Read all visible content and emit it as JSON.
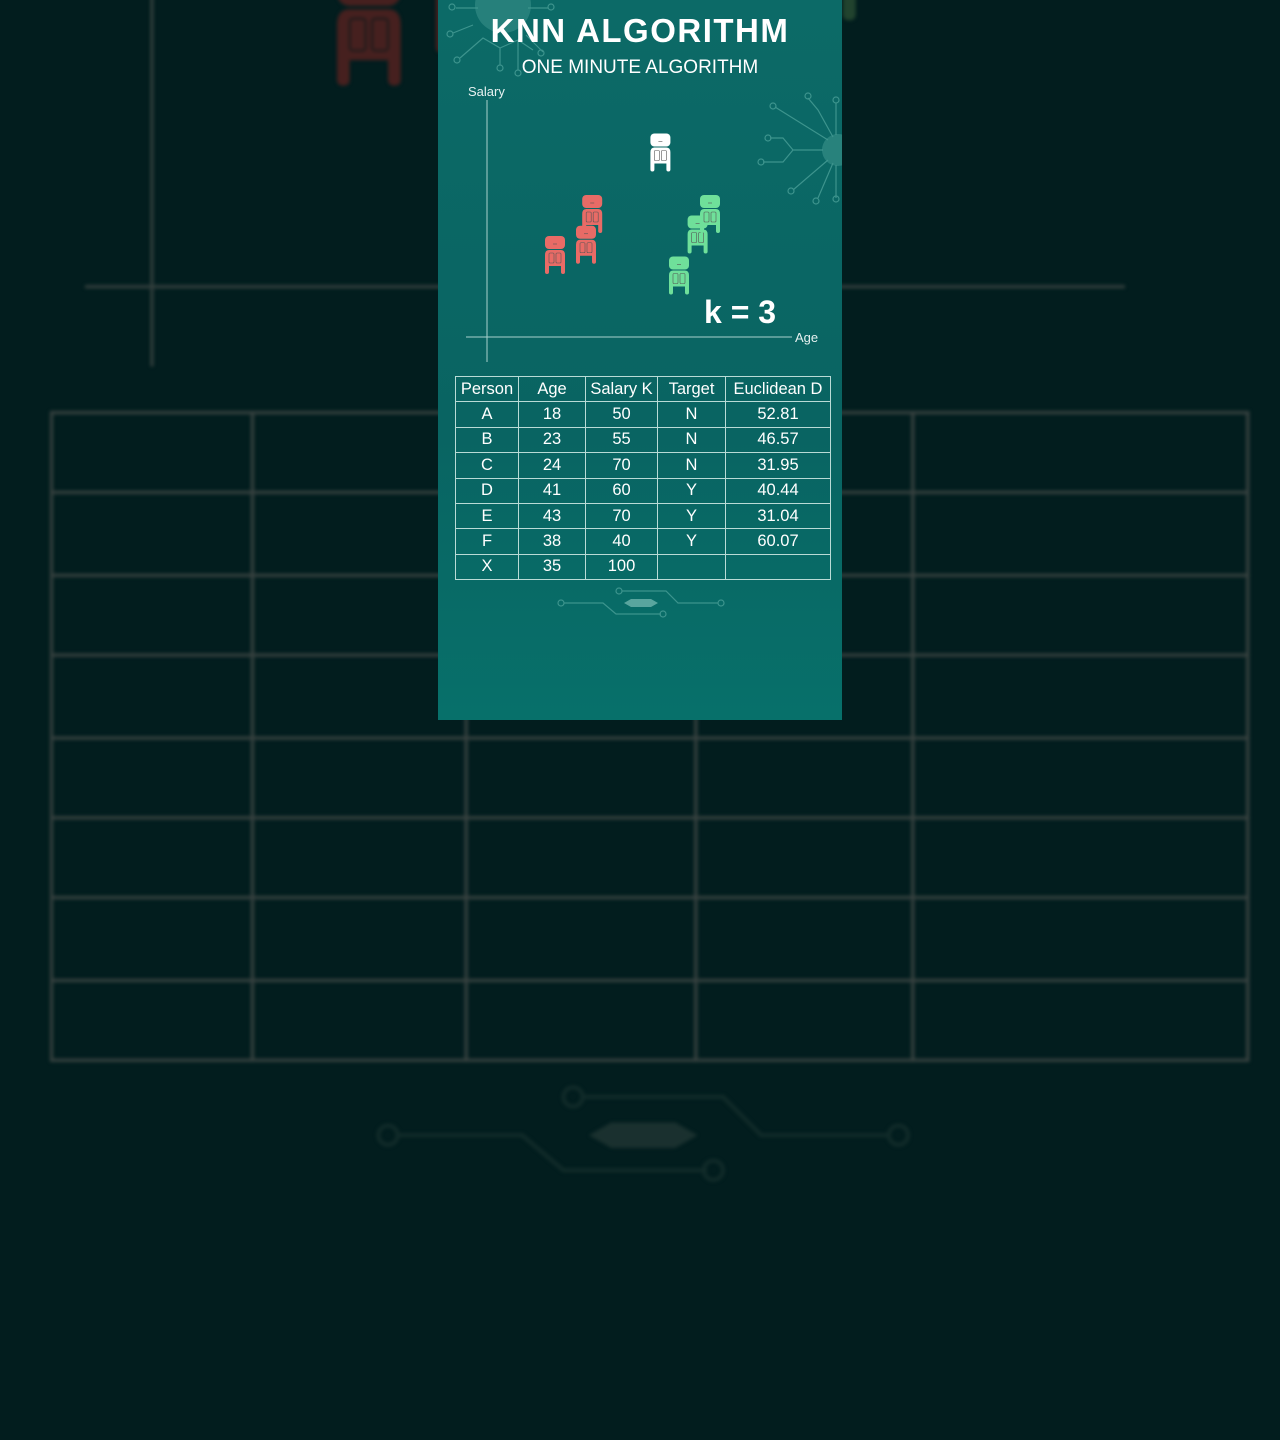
{
  "header": {
    "title": "KNN ALGORITHM",
    "subtitle": "ONE MINUTE ALGORITHM"
  },
  "plot": {
    "y_axis_label": "Salary",
    "x_axis_label": "Age",
    "k_label": "k = 3",
    "colors": {
      "N": "#e86b66",
      "Y": "#6fe09a",
      "query": "#ffffff"
    }
  },
  "table": {
    "headers": [
      "Person",
      "Age",
      "Salary K",
      "Target",
      "Euclidean D"
    ],
    "rows": [
      [
        "A",
        "18",
        "50",
        "N",
        "52.81"
      ],
      [
        "B",
        "23",
        "55",
        "N",
        "46.57"
      ],
      [
        "C",
        "24",
        "70",
        "N",
        "31.95"
      ],
      [
        "D",
        "41",
        "60",
        "Y",
        "40.44"
      ],
      [
        "E",
        "43",
        "70",
        "Y",
        "31.04"
      ],
      [
        "F",
        "38",
        "40",
        "Y",
        "60.07"
      ],
      [
        "X",
        "35",
        "100",
        "",
        ""
      ]
    ]
  }
}
